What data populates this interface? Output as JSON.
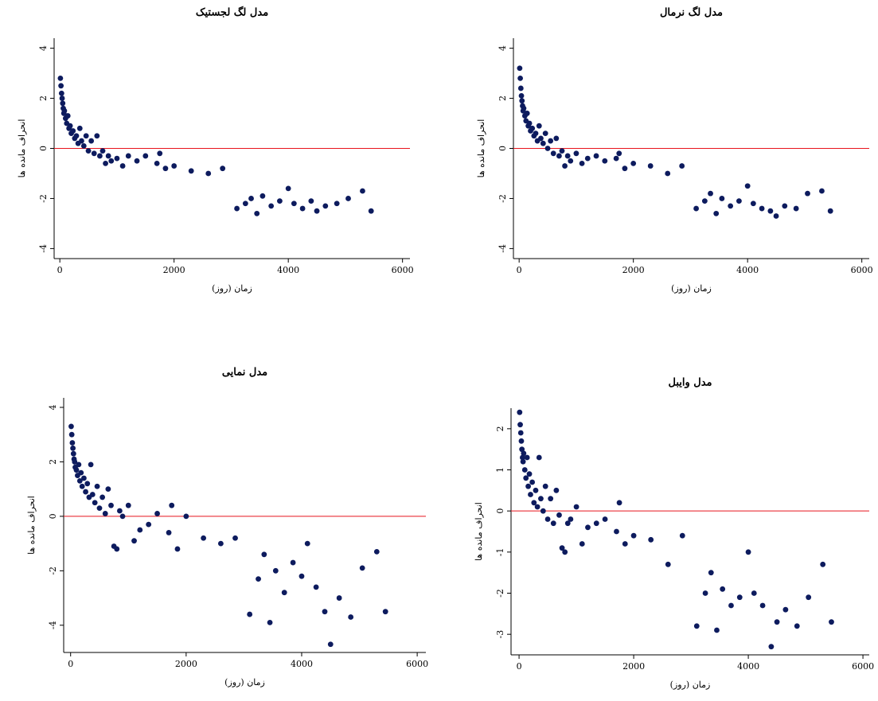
{
  "chart_data": [
    {
      "type": "scatter",
      "title": "مدل لگ لجستیک",
      "x_label": "زمان (روز)",
      "y_label": "انحراف مانده ها",
      "color": "#0d1b5e",
      "reference_line": {
        "value": 0,
        "color": "#e8141c"
      },
      "xlim": [
        -100,
        6130
      ],
      "ylim": [
        -4.4,
        4.4
      ],
      "xticks": [
        0,
        2000,
        4000,
        6000
      ],
      "yticks": [
        -4,
        -2,
        0,
        2,
        4
      ],
      "x": [
        10,
        20,
        30,
        40,
        50,
        60,
        70,
        80,
        100,
        120,
        140,
        160,
        180,
        200,
        230,
        260,
        290,
        320,
        350,
        380,
        420,
        460,
        500,
        550,
        600,
        650,
        700,
        750,
        800,
        850,
        900,
        1000,
        1100,
        1200,
        1350,
        1500,
        1700,
        1750,
        1850,
        2000,
        2300,
        2600,
        2850,
        3100,
        3250,
        3350,
        3450,
        3550,
        3700,
        3850,
        4000,
        4100,
        4250,
        4400,
        4500,
        4650,
        4850,
        5050,
        5300,
        5450
      ],
      "values": [
        2.8,
        2.5,
        2.2,
        2.0,
        1.8,
        1.6,
        1.4,
        1.5,
        1.2,
        1.0,
        1.3,
        0.8,
        0.9,
        0.6,
        0.7,
        0.4,
        0.5,
        0.2,
        0.8,
        0.3,
        0.1,
        0.5,
        -0.1,
        0.3,
        -0.2,
        0.5,
        -0.3,
        -0.1,
        -0.6,
        -0.3,
        -0.5,
        -0.4,
        -0.7,
        -0.3,
        -0.5,
        -0.3,
        -0.6,
        -0.2,
        -0.8,
        -0.7,
        -0.9,
        -1.0,
        -0.8,
        -2.4,
        -2.2,
        -2.0,
        -2.6,
        -1.9,
        -2.3,
        -2.1,
        -1.6,
        -2.2,
        -2.4,
        -2.1,
        -2.5,
        -2.3,
        -2.2,
        -2.0,
        -1.7,
        -2.5
      ]
    },
    {
      "type": "scatter",
      "title": "مدل لگ نرمال",
      "x_label": "زمان (روز)",
      "y_label": "انحراف مانده ها",
      "color": "#0d1b5e",
      "reference_line": {
        "value": 0,
        "color": "#e8141c"
      },
      "xlim": [
        -100,
        6130
      ],
      "ylim": [
        -4.4,
        4.4
      ],
      "xticks": [
        0,
        2000,
        4000,
        6000
      ],
      "yticks": [
        -4,
        -2,
        0,
        2,
        4
      ],
      "x": [
        10,
        20,
        30,
        40,
        50,
        60,
        70,
        80,
        100,
        120,
        140,
        160,
        180,
        200,
        230,
        260,
        290,
        320,
        350,
        380,
        420,
        460,
        500,
        550,
        600,
        650,
        700,
        750,
        800,
        850,
        900,
        1000,
        1100,
        1200,
        1350,
        1500,
        1700,
        1750,
        1850,
        2000,
        2300,
        2600,
        2850,
        3100,
        3250,
        3350,
        3450,
        3550,
        3700,
        3850,
        4000,
        4100,
        4250,
        4400,
        4500,
        4650,
        4850,
        5050,
        5300,
        5450
      ],
      "values": [
        3.2,
        2.8,
        2.4,
        2.1,
        1.9,
        1.7,
        1.5,
        1.6,
        1.3,
        1.1,
        1.4,
        0.9,
        1.0,
        0.7,
        0.8,
        0.5,
        0.6,
        0.3,
        0.9,
        0.4,
        0.2,
        0.6,
        0.0,
        0.3,
        -0.2,
        0.4,
        -0.3,
        -0.1,
        -0.7,
        -0.3,
        -0.5,
        -0.2,
        -0.6,
        -0.4,
        -0.3,
        -0.5,
        -0.4,
        -0.2,
        -0.8,
        -0.6,
        -0.7,
        -1.0,
        -0.7,
        -2.4,
        -2.1,
        -1.8,
        -2.6,
        -2.0,
        -2.3,
        -2.1,
        -1.5,
        -2.2,
        -2.4,
        -2.5,
        -2.7,
        -2.3,
        -2.4,
        -1.8,
        -1.7,
        -2.5
      ]
    },
    {
      "type": "scatter",
      "title": "مدل نمایی",
      "x_label": "زمان (روز)",
      "y_label": "انحراف مانده ها",
      "color": "#0d1b5e",
      "reference_line": {
        "value": 0,
        "color": "#e8141c"
      },
      "xlim": [
        -120,
        6150
      ],
      "ylim": [
        -5,
        4.35
      ],
      "xticks": [
        0,
        2000,
        4000,
        6000
      ],
      "yticks": [
        -4,
        -2,
        0,
        2,
        4
      ],
      "x": [
        10,
        20,
        30,
        40,
        50,
        60,
        70,
        80,
        100,
        120,
        140,
        160,
        180,
        200,
        230,
        260,
        290,
        320,
        350,
        380,
        420,
        460,
        500,
        550,
        600,
        650,
        700,
        750,
        800,
        850,
        900,
        1000,
        1100,
        1200,
        1350,
        1500,
        1700,
        1750,
        1850,
        2000,
        2300,
        2600,
        2850,
        3100,
        3250,
        3350,
        3450,
        3550,
        3700,
        3850,
        4000,
        4100,
        4250,
        4400,
        4500,
        4650,
        4850,
        5050,
        5300,
        5450
      ],
      "values": [
        3.3,
        3.0,
        2.7,
        2.5,
        2.3,
        2.1,
        2.0,
        1.8,
        1.7,
        1.5,
        1.9,
        1.3,
        1.6,
        1.1,
        1.4,
        0.9,
        1.2,
        0.7,
        1.9,
        0.8,
        0.5,
        1.1,
        0.3,
        0.7,
        0.1,
        1.0,
        0.4,
        -1.1,
        -1.2,
        0.2,
        0.0,
        0.4,
        -0.9,
        -0.5,
        -0.3,
        0.1,
        -0.6,
        0.4,
        -1.2,
        0.0,
        -0.8,
        -1.0,
        -0.8,
        -3.6,
        -2.3,
        -1.4,
        -3.9,
        -2.0,
        -2.8,
        -1.7,
        -2.2,
        -1.0,
        -2.6,
        -3.5,
        -4.7,
        -3.0,
        -3.7,
        -1.9,
        -1.3,
        -3.5
      ]
    },
    {
      "type": "scatter",
      "title": "مدل وایبل",
      "x_label": "زمان (روز)",
      "y_label": "انحراف مانده ها",
      "color": "#0d1b5e",
      "reference_line": {
        "value": 0,
        "color": "#e8141c"
      },
      "xlim": [
        -140,
        6110
      ],
      "ylim": [
        -3.5,
        2.5
      ],
      "xticks": [
        0,
        2000,
        4000,
        6000
      ],
      "yticks": [
        -3,
        -2,
        -1,
        0,
        1,
        2
      ],
      "x": [
        10,
        20,
        30,
        40,
        50,
        60,
        70,
        80,
        100,
        120,
        140,
        160,
        180,
        200,
        230,
        260,
        290,
        320,
        350,
        380,
        420,
        460,
        500,
        550,
        600,
        650,
        700,
        750,
        800,
        850,
        900,
        1000,
        1100,
        1200,
        1350,
        1500,
        1700,
        1750,
        1850,
        2000,
        2300,
        2600,
        2850,
        3100,
        3250,
        3350,
        3450,
        3550,
        3700,
        3850,
        4000,
        4100,
        4250,
        4400,
        4500,
        4650,
        4850,
        5050,
        5300,
        5450
      ],
      "values": [
        2.4,
        2.1,
        1.9,
        1.7,
        1.5,
        1.3,
        1.2,
        1.4,
        1.0,
        0.8,
        1.3,
        0.6,
        0.9,
        0.4,
        0.7,
        0.2,
        0.5,
        0.1,
        1.3,
        0.3,
        0.0,
        0.6,
        -0.2,
        0.3,
        -0.3,
        0.5,
        -0.1,
        -0.9,
        -1.0,
        -0.3,
        -0.2,
        0.1,
        -0.8,
        -0.4,
        -0.3,
        -0.2,
        -0.5,
        0.2,
        -0.8,
        -0.6,
        -0.7,
        -1.3,
        -0.6,
        -2.8,
        -2.0,
        -1.5,
        -2.9,
        -1.9,
        -2.3,
        -2.1,
        -1.0,
        -2.0,
        -2.3,
        -3.3,
        -2.7,
        -2.4,
        -2.8,
        -2.1,
        -1.3,
        -2.7
      ]
    }
  ]
}
